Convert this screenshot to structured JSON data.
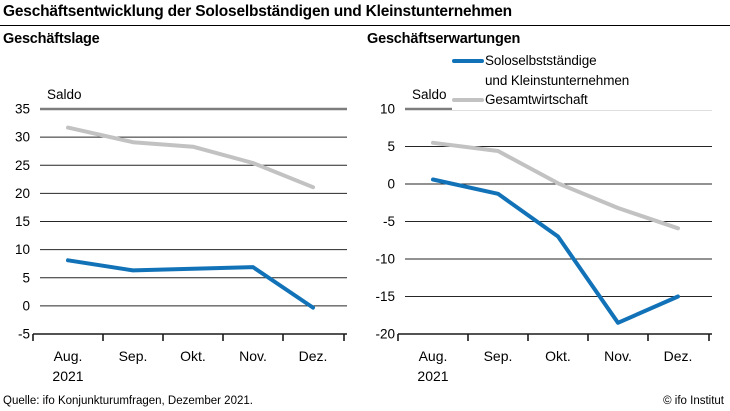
{
  "header": {
    "title": "Geschäftsentwicklung der Soloselbständigen und Kleinstunternehmen"
  },
  "legend": {
    "position": "top-right",
    "items": [
      {
        "id": "soloselbststaendige",
        "label_line1": "Soloselbstständige",
        "label_line2": "und Kleinstunternehmen",
        "color": "#1272b8"
      },
      {
        "id": "gesamtwirtschaft",
        "label_line1": "Gesamtwirtschaft",
        "label_line2": "",
        "color": "#c2c2c2"
      }
    ]
  },
  "footer": {
    "source": "Quelle: ifo Konjunkturumfragen, Dezember 2021.",
    "copyright": "© ifo Institut"
  },
  "chart_data": [
    {
      "type": "line",
      "title": "Geschäftslage",
      "ylabel": "Saldo",
      "x": [
        "Aug. 2021",
        "Sep.",
        "Okt.",
        "Nov.",
        "Dez."
      ],
      "x_tick_labels": [
        "Aug.",
        "Sep.",
        "Okt.",
        "Nov.",
        "Dez."
      ],
      "x_sub_label": "2021",
      "ylim": [
        -5,
        35
      ],
      "ytick_step": 5,
      "grid": true,
      "series": [
        {
          "id": "soloselbststaendige",
          "name": "Soloselbstständige und Kleinstunternehmen",
          "color": "#1272b8",
          "values": [
            8.1,
            6.3,
            6.6,
            6.9,
            -0.3
          ]
        },
        {
          "id": "gesamtwirtschaft",
          "name": "Gesamtwirtschaft",
          "color": "#c2c2c2",
          "values": [
            31.7,
            29.1,
            28.3,
            25.4,
            21.1
          ]
        }
      ]
    },
    {
      "type": "line",
      "title": "Geschäftserwartungen",
      "ylabel": "Saldo",
      "x": [
        "Aug. 2021",
        "Sep.",
        "Okt.",
        "Nov.",
        "Dez."
      ],
      "x_tick_labels": [
        "Aug.",
        "Sep.",
        "Okt.",
        "Nov.",
        "Dez."
      ],
      "x_sub_label": "2021",
      "ylim": [
        -20,
        10
      ],
      "ytick_step": 5,
      "grid": true,
      "series": [
        {
          "id": "soloselbststaendige",
          "name": "Soloselbstständige und Kleinstunternehmen",
          "color": "#1272b8",
          "values": [
            0.6,
            -1.3,
            -7.0,
            -18.5,
            -15.0
          ]
        },
        {
          "id": "gesamtwirtschaft",
          "name": "Gesamtwirtschaft",
          "color": "#c2c2c2",
          "values": [
            5.5,
            4.4,
            0.1,
            -3.2,
            -5.9
          ]
        }
      ]
    }
  ]
}
